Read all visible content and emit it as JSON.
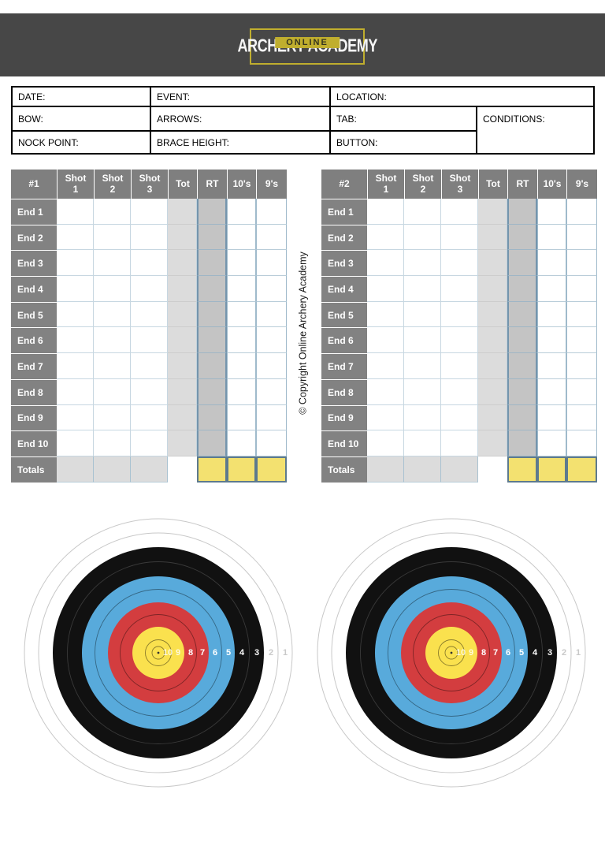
{
  "header": {
    "badge": "ONLINE",
    "title": "ARCHERY ACADEMY",
    "bar_color": "#474747",
    "accent_color": "#c0ae2e"
  },
  "form": {
    "fields": [
      "DATE:",
      "EVENT:",
      "LOCATION:",
      "BOW:",
      "ARROWS:",
      "TAB:",
      "CONDITIONS:",
      "NOCK POINT:",
      "BRACE HEIGHT:",
      "BUTTON:"
    ]
  },
  "score_tables": [
    {
      "id": "#1",
      "columns": [
        "Shot\n1",
        "Shot\n2",
        "Shot\n3",
        "Tot",
        "RT",
        "10's",
        "9's"
      ],
      "rows": [
        "End 1",
        "End 2",
        "End 3",
        "End 4",
        "End 5",
        "End 6",
        "End 7",
        "End 8",
        "End 9",
        "End 10"
      ],
      "totals_label": "Totals",
      "cell_values": ""
    },
    {
      "id": "#2",
      "columns": [
        "Shot\n1",
        "Shot\n2",
        "Shot\n3",
        "Tot",
        "RT",
        "10's",
        "9's"
      ],
      "rows": [
        "End 1",
        "End 2",
        "End 3",
        "End 4",
        "End 5",
        "End 6",
        "End 7",
        "End 8",
        "End 9",
        "End 10"
      ],
      "totals_label": "Totals",
      "cell_values": ""
    }
  ],
  "copyright": "© Copyright Online Archery Academy",
  "colors": {
    "table_header_gray": "#7f7f7f",
    "row_label_gray": "#828282",
    "tot_column_fill": "#dcdcdc",
    "rt_column_fill": "#c4c4c4",
    "totals_highlight_yellow": "#f3e170",
    "target_yellow": "#fae14e",
    "target_red": "#d33d3f",
    "target_blue": "#58aadb",
    "target_black": "#111111"
  },
  "targets": {
    "count": 2,
    "ring_numbers": [
      "10",
      "9",
      "8",
      "7",
      "6",
      "5",
      "4",
      "3",
      "2",
      "1"
    ],
    "number_radii": [
      12,
      25,
      41,
      56,
      72,
      89,
      106,
      125,
      143,
      161
    ],
    "number_colors": [
      "rgba(255,255,255,0.8)",
      "rgba(255,255,255,0.8)",
      "#ffffff",
      "#ffffff",
      "#ffffff",
      "#ffffff",
      "#ffffff",
      "#ffffff",
      "#c9c9c9",
      "#c9c9c9"
    ],
    "rings": [
      {
        "name": "outer-edge",
        "r": 170,
        "fill": "#ffffff",
        "stroke": "#c8c8c8"
      },
      {
        "name": "ring-2-boundary",
        "r": 152,
        "fill": "none",
        "stroke": "#c8c8c8"
      },
      {
        "name": "black-zone",
        "r": 134,
        "fill": "#111111",
        "stroke": "none"
      },
      {
        "name": "ring-4-boundary",
        "r": 115.5,
        "fill": "none",
        "stroke": "#3a3a3a"
      },
      {
        "name": "blue-zone",
        "r": 97,
        "fill": "#58aadb",
        "stroke": "none"
      },
      {
        "name": "ring-6-boundary",
        "r": 80.5,
        "fill": "none",
        "stroke": "rgba(0,0,0,0.4)"
      },
      {
        "name": "red-zone",
        "r": 64,
        "fill": "#d33d3f",
        "stroke": "none"
      },
      {
        "name": "ring-8-boundary",
        "r": 48.5,
        "fill": "none",
        "stroke": "rgba(0,0,0,0.4)"
      },
      {
        "name": "yellow-zone",
        "r": 33,
        "fill": "#fae14e",
        "stroke": "none"
      },
      {
        "name": "ring-10-boundary",
        "r": 16.5,
        "fill": "none",
        "stroke": "rgba(0,0,0,0.45)"
      },
      {
        "name": "x-ring",
        "r": 8,
        "fill": "none",
        "stroke": "rgba(0,0,0,0.45)"
      },
      {
        "name": "center-dot",
        "r": 1.4,
        "fill": "#333333",
        "stroke": "none"
      }
    ]
  }
}
